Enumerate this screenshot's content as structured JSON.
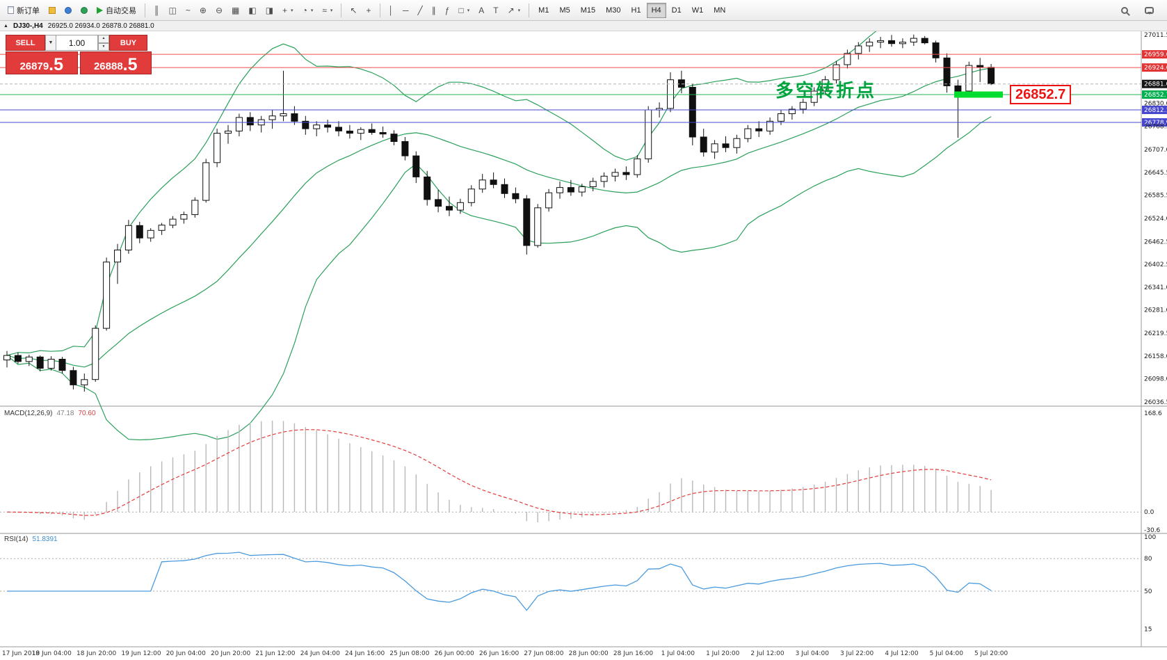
{
  "toolbar": {
    "new_order": "新订单",
    "auto_trading": "自动交易",
    "caret_glyph": "▾",
    "view_tools": [
      {
        "name": "bar-chart",
        "glyph": "║"
      },
      {
        "name": "candlestick-chart",
        "glyph": "◫"
      },
      {
        "name": "line-chart",
        "glyph": "~"
      },
      {
        "name": "zoom-in",
        "glyph": "⊕"
      },
      {
        "name": "zoom-out",
        "glyph": "⊖"
      },
      {
        "name": "tile-windows",
        "glyph": "▦"
      },
      {
        "name": "arrange-horizontal",
        "glyph": "◧"
      },
      {
        "name": "arrange-vertical",
        "glyph": "◨"
      },
      {
        "name": "new-chart",
        "glyph": "+",
        "caret": true
      },
      {
        "name": "profiles",
        "glyph": "◔",
        "caret": true
      },
      {
        "name": "indicators",
        "glyph": "≈",
        "caret": true
      }
    ],
    "draw_tools": [
      {
        "name": "cursor",
        "glyph": "↖"
      },
      {
        "name": "crosshair",
        "glyph": "+"
      },
      {
        "sep": true
      },
      {
        "name": "vertical-line",
        "glyph": "│"
      },
      {
        "name": "horizontal-line",
        "glyph": "─"
      },
      {
        "name": "trendline",
        "glyph": "╱"
      },
      {
        "name": "channel",
        "glyph": "∥"
      },
      {
        "name": "fibonacci",
        "glyph": "ƒ"
      },
      {
        "name": "shapes",
        "glyph": "□",
        "caret": true
      },
      {
        "name": "text",
        "glyph": "A"
      },
      {
        "name": "text-label",
        "glyph": "T"
      },
      {
        "name": "arrows",
        "glyph": "↗",
        "caret": true
      }
    ],
    "timeframes": [
      "M1",
      "M5",
      "M15",
      "M30",
      "H1",
      "H4",
      "D1",
      "W1",
      "MN"
    ],
    "active_timeframe": "H4"
  },
  "title_bar": {
    "collapse_glyph": "▲",
    "symbol": "DJ30-,H4",
    "ohlc": "26925.0 26934.0 26878.0 26881.0"
  },
  "trade_panel": {
    "sell_label": "SELL",
    "buy_label": "BUY",
    "volume": "1.00",
    "dropdown_glyph": "▼",
    "up_glyph": "▲",
    "down_glyph": "▼",
    "sell_price_int": "26879",
    "sell_price_dec": ".5",
    "buy_price_int": "26888",
    "buy_price_dec": ".5"
  },
  "annotation": {
    "text": "多空转折点",
    "color": "#00a43e"
  },
  "price_tag": {
    "text": "26852.7",
    "color": "#ee1212"
  },
  "colors": {
    "axis_tags": {
      "resistance": "#e23434",
      "current": "#141414",
      "pivot": "#00b050",
      "support": "#4646cf"
    }
  },
  "chart_data": {
    "type": "candlestick",
    "symbol": "DJ30-",
    "timeframe": "H4",
    "price_range": [
      26036.5,
      27011.5
    ],
    "candles": [
      [
        26148,
        26172,
        26128,
        26160
      ],
      [
        26160,
        26168,
        26138,
        26144
      ],
      [
        26144,
        26162,
        26132,
        26156
      ],
      [
        26156,
        26160,
        26118,
        26126
      ],
      [
        26126,
        26158,
        26120,
        26150
      ],
      [
        26150,
        26156,
        26112,
        26120
      ],
      [
        26120,
        26130,
        26070,
        26082
      ],
      [
        26082,
        26112,
        26064,
        26096
      ],
      [
        26096,
        26240,
        26090,
        26232
      ],
      [
        26232,
        26420,
        26226,
        26408
      ],
      [
        26408,
        26456,
        26350,
        26440
      ],
      [
        26440,
        26520,
        26430,
        26505
      ],
      [
        26505,
        26515,
        26458,
        26472
      ],
      [
        26472,
        26498,
        26462,
        26492
      ],
      [
        26492,
        26512,
        26480,
        26506
      ],
      [
        26506,
        26530,
        26498,
        26522
      ],
      [
        26522,
        26542,
        26510,
        26534
      ],
      [
        26534,
        26580,
        26526,
        26572
      ],
      [
        26572,
        26682,
        26566,
        26672
      ],
      [
        26672,
        26762,
        26660,
        26750
      ],
      [
        26750,
        26772,
        26722,
        26756
      ],
      [
        26756,
        26802,
        26742,
        26792
      ],
      [
        26792,
        26806,
        26756,
        26772
      ],
      [
        26772,
        26796,
        26752,
        26786
      ],
      [
        26786,
        26812,
        26762,
        26796
      ],
      [
        26796,
        26916,
        26782,
        26802
      ],
      [
        26802,
        26822,
        26772,
        26782
      ],
      [
        26782,
        26796,
        26746,
        26762
      ],
      [
        26762,
        26782,
        26742,
        26772
      ],
      [
        26772,
        26786,
        26752,
        26766
      ],
      [
        26766,
        26782,
        26742,
        26756
      ],
      [
        26756,
        26772,
        26736,
        26750
      ],
      [
        26750,
        26766,
        26732,
        26760
      ],
      [
        26760,
        26776,
        26746,
        26752
      ],
      [
        26752,
        26768,
        26738,
        26748
      ],
      [
        26748,
        26758,
        26718,
        26728
      ],
      [
        26728,
        26740,
        26678,
        26690
      ],
      [
        26690,
        26702,
        26618,
        26634
      ],
      [
        26634,
        26650,
        26558,
        26574
      ],
      [
        26574,
        26600,
        26540,
        26556
      ],
      [
        26556,
        26582,
        26530,
        26546
      ],
      [
        26546,
        26576,
        26536,
        26566
      ],
      [
        26566,
        26612,
        26556,
        26602
      ],
      [
        26602,
        26642,
        26592,
        26626
      ],
      [
        26626,
        26646,
        26604,
        26614
      ],
      [
        26614,
        26630,
        26578,
        26590
      ],
      [
        26590,
        26606,
        26564,
        26576
      ],
      [
        26576,
        26586,
        26428,
        26452
      ],
      [
        26452,
        26562,
        26446,
        26552
      ],
      [
        26552,
        26602,
        26542,
        26592
      ],
      [
        26592,
        26622,
        26576,
        26606
      ],
      [
        26606,
        26626,
        26584,
        26594
      ],
      [
        26594,
        26616,
        26582,
        26608
      ],
      [
        26608,
        26632,
        26596,
        26622
      ],
      [
        26622,
        26646,
        26606,
        26636
      ],
      [
        26636,
        26656,
        26622,
        26646
      ],
      [
        26646,
        26662,
        26626,
        26640
      ],
      [
        26640,
        26692,
        26632,
        26682
      ],
      [
        26682,
        26822,
        26672,
        26812
      ],
      [
        26812,
        26832,
        26792,
        26816
      ],
      [
        26816,
        26912,
        26806,
        26892
      ],
      [
        26892,
        26916,
        26856,
        26872
      ],
      [
        26872,
        26882,
        26718,
        26740
      ],
      [
        26740,
        26762,
        26688,
        26700
      ],
      [
        26700,
        26732,
        26682,
        26722
      ],
      [
        26722,
        26742,
        26700,
        26712
      ],
      [
        26712,
        26746,
        26696,
        26736
      ],
      [
        26736,
        26772,
        26726,
        26762
      ],
      [
        26762,
        26782,
        26740,
        26756
      ],
      [
        26756,
        26792,
        26746,
        26782
      ],
      [
        26782,
        26812,
        26772,
        26802
      ],
      [
        26802,
        26822,
        26786,
        26814
      ],
      [
        26814,
        26842,
        26802,
        26832
      ],
      [
        26832,
        26872,
        26822,
        26862
      ],
      [
        26862,
        26902,
        26852,
        26892
      ],
      [
        26892,
        26942,
        26882,
        26932
      ],
      [
        26932,
        26972,
        26922,
        26962
      ],
      [
        26962,
        26992,
        26946,
        26982
      ],
      [
        26982,
        27002,
        26966,
        26992
      ],
      [
        26992,
        27006,
        26976,
        26996
      ],
      [
        26996,
        27011,
        26980,
        26988
      ],
      [
        26988,
        27002,
        26976,
        26992
      ],
      [
        26992,
        27012,
        26982,
        27002
      ],
      [
        27002,
        27008,
        26986,
        26990
      ],
      [
        26990,
        26996,
        26938,
        26950
      ],
      [
        26950,
        26962,
        26858,
        26876
      ],
      [
        26876,
        26892,
        26738,
        26862
      ],
      [
        26862,
        26940,
        26856,
        26930
      ],
      [
        26930,
        26950,
        26886,
        26925
      ],
      [
        26925,
        26934,
        26878,
        26881
      ]
    ],
    "bollinger": {
      "period": 20,
      "deviation": 2,
      "color": "#2aa05a"
    },
    "levels": [
      {
        "price": 26959.6,
        "color": "#ef4e4e",
        "style": "solid"
      },
      {
        "price": 26924.6,
        "color": "#ef4e4e",
        "style": "solid"
      },
      {
        "price": 26881.0,
        "color": "#b4b4b4",
        "style": "dash"
      },
      {
        "price": 26852.7,
        "color": "#22b14c",
        "style": "solid"
      },
      {
        "price": 26812.1,
        "color": "#4747d1",
        "style": "solid"
      },
      {
        "price": 26778.9,
        "color": "#4747d1",
        "style": "solid"
      }
    ],
    "highlight_bar": {
      "price": 26852.7,
      "color": "#00dd2e"
    },
    "y_axis": [
      {
        "label": "27011.5",
        "type": "plain"
      },
      {
        "label": "26959.6",
        "type": "resistance"
      },
      {
        "label": "26924.6",
        "type": "resistance"
      },
      {
        "label": "26881.0",
        "type": "current"
      },
      {
        "label": "26852.7",
        "type": "pivot"
      },
      {
        "label": "26830.0",
        "type": "plain"
      },
      {
        "label": "26812.1",
        "type": "support"
      },
      {
        "label": "26778.9",
        "type": "support"
      },
      {
        "label": "26768.5",
        "type": "plain"
      },
      {
        "label": "26707.0",
        "type": "plain"
      },
      {
        "label": "26645.5",
        "type": "plain"
      },
      {
        "label": "26585.5",
        "type": "plain"
      },
      {
        "label": "26524.0",
        "type": "plain"
      },
      {
        "label": "26462.5",
        "type": "plain"
      },
      {
        "label": "26402.5",
        "type": "plain"
      },
      {
        "label": "26341.0",
        "type": "plain"
      },
      {
        "label": "26281.0",
        "type": "plain"
      },
      {
        "label": "26219.5",
        "type": "plain"
      },
      {
        "label": "26158.0",
        "type": "plain"
      },
      {
        "label": "26098.0",
        "type": "plain"
      },
      {
        "label": "26036.5",
        "type": "plain"
      }
    ],
    "x_axis": [
      "17 Jun 2019",
      "18 Jun 04:00",
      "18 Jun 20:00",
      "19 Jun 12:00",
      "20 Jun 04:00",
      "20 Jun 20:00",
      "21 Jun 12:00",
      "24 Jun 04:00",
      "24 Jun 16:00",
      "25 Jun 08:00",
      "26 Jun 00:00",
      "26 Jun 16:00",
      "27 Jun 08:00",
      "28 Jun 00:00",
      "28 Jun 16:00",
      "1 Jul 04:00",
      "1 Jul 20:00",
      "2 Jul 12:00",
      "3 Jul 04:00",
      "3 Jul 22:00",
      "4 Jul 12:00",
      "5 Jul 04:00",
      "5 Jul 20:00"
    ],
    "macd": {
      "label": "MACD(12,26,9)",
      "value_main": "47.18",
      "value_signal": "70.60",
      "params": [
        12,
        26,
        9
      ],
      "range": [
        -30.6,
        168.6
      ],
      "axis": [
        "168.6",
        "0.0",
        "-30.6"
      ],
      "hist_color": "#b8b8b8",
      "signal_color": "#e23c3c"
    },
    "rsi": {
      "label": "RSI(14)",
      "value": "51.8391",
      "period": 14,
      "range": [
        0,
        100
      ],
      "axis": [
        "100",
        "80",
        "50",
        "15"
      ],
      "levels": [
        80,
        50
      ],
      "line_color": "#4a9ade"
    }
  }
}
